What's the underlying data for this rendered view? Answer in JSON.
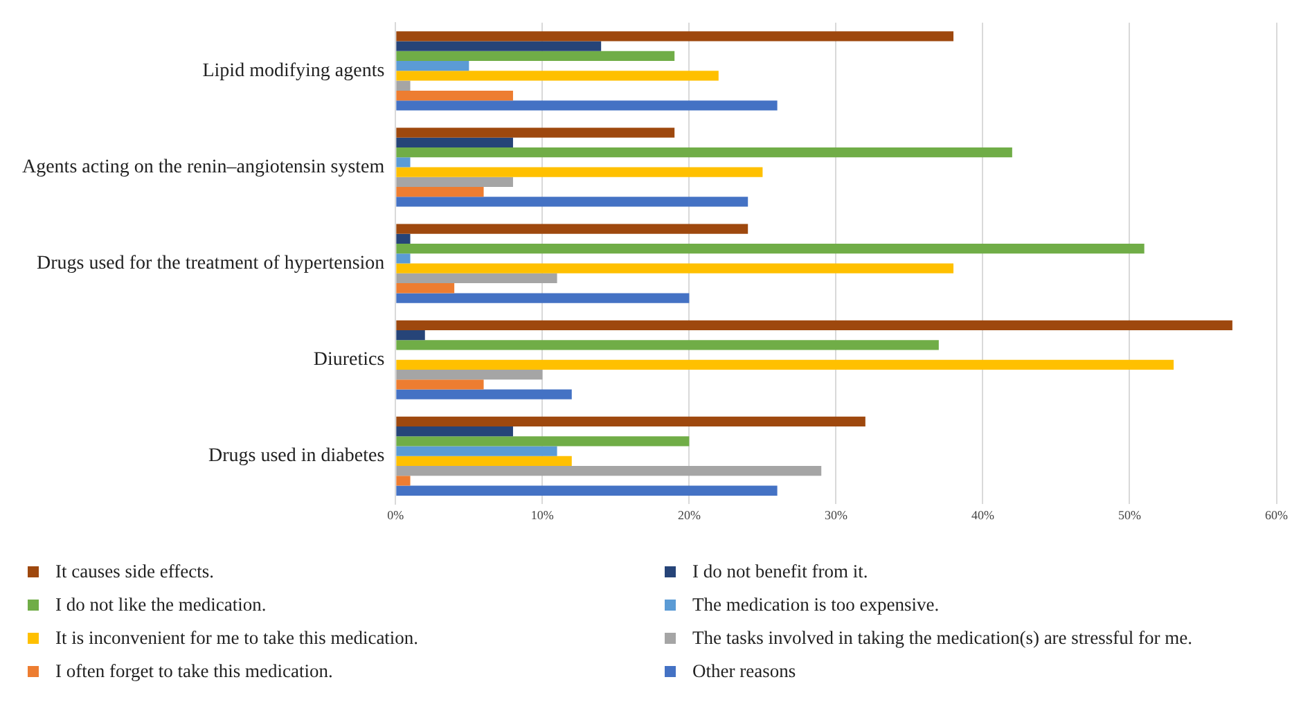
{
  "chart_data": {
    "type": "bar",
    "orientation": "horizontal",
    "categories": [
      "Lipid modifying agents",
      "Agents acting on the renin–angiotensin system",
      "Drugs used for the treatment of hypertension",
      "Diuretics",
      "Drugs used in diabetes"
    ],
    "series": [
      {
        "name": "It causes side effects.",
        "color": "#9e480e",
        "values": [
          38,
          19,
          24,
          57,
          32
        ]
      },
      {
        "name": "I do not benefit from it.",
        "color": "#264478",
        "values": [
          14,
          8,
          1,
          2,
          8
        ]
      },
      {
        "name": "I do not like the medication.",
        "color": "#70ad47",
        "values": [
          19,
          42,
          51,
          37,
          20
        ]
      },
      {
        "name": "The medication is too expensive.",
        "color": "#5b9bd5",
        "values": [
          5,
          1,
          1,
          0,
          11
        ]
      },
      {
        "name": "It is inconvenient for me to take this medication.",
        "color": "#ffc000",
        "values": [
          22,
          25,
          38,
          53,
          12
        ]
      },
      {
        "name": "The tasks involved in taking the medication(s) are stressful for me.",
        "color": "#a5a5a5",
        "values": [
          1,
          8,
          11,
          10,
          29
        ]
      },
      {
        "name": "I often forget to take this medication.",
        "color": "#ed7d31",
        "values": [
          8,
          6,
          4,
          6,
          1
        ]
      },
      {
        "name": "Other reasons",
        "color": "#4472c4",
        "values": [
          26,
          24,
          20,
          12,
          26
        ]
      }
    ],
    "xlim": [
      0,
      60
    ],
    "xticks": [
      {
        "value": 0,
        "label": "0%"
      },
      {
        "value": 10,
        "label": "10%"
      },
      {
        "value": 20,
        "label": "20%"
      },
      {
        "value": 30,
        "label": "30%"
      },
      {
        "value": 40,
        "label": "40%"
      },
      {
        "value": 50,
        "label": "50%"
      },
      {
        "value": 60,
        "label": "60%"
      }
    ],
    "grid": "x",
    "legend": "bottom"
  }
}
